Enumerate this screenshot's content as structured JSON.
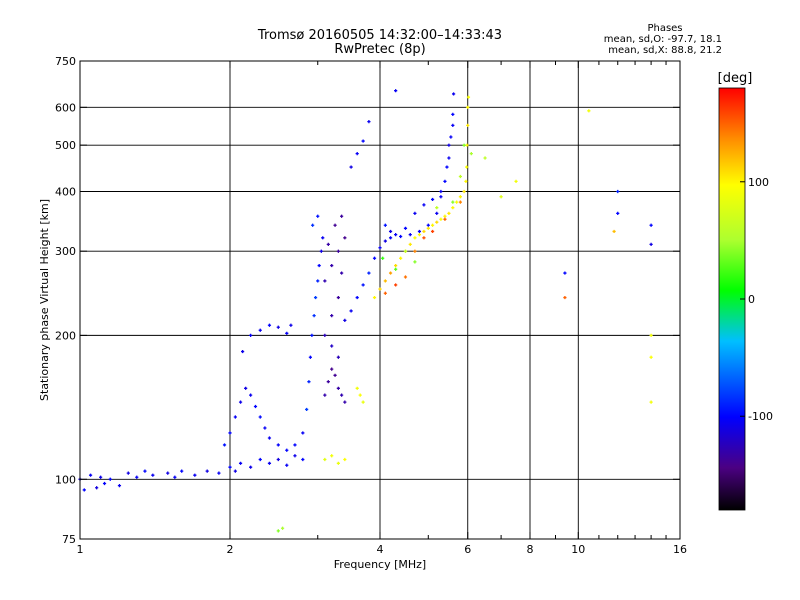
{
  "chart_data": {
    "type": "scatter",
    "title": "Tromsø 20160505 14:32:00–14:33:43",
    "subtitle": "RwPretec (8p)",
    "legend_text": {
      "heading": "Phases",
      "line1": "mean, sd,O: -97.7, 18.1",
      "line2": "mean, sd,X:  88.8, 21.2"
    },
    "xlabel": "Frequency [MHz]",
    "ylabel": "Stationary phase Virtual Height [km]",
    "x_scale": "log",
    "y_scale": "log",
    "xlim": [
      1,
      16
    ],
    "ylim": [
      75,
      750
    ],
    "grid": true,
    "x_ticks": [
      1,
      2,
      4,
      6,
      8,
      10,
      16
    ],
    "x_tick_labels": [
      "1",
      "2",
      "4",
      "6",
      "8",
      "10",
      "16"
    ],
    "x_minor_ticks": [
      3,
      5,
      7,
      9,
      11,
      12,
      13,
      14,
      15
    ],
    "x_grid": [
      2,
      4,
      6,
      8,
      10
    ],
    "y_ticks": [
      75,
      100,
      200,
      300,
      400,
      500,
      600,
      750
    ],
    "y_tick_labels": [
      "75",
      "100",
      "200",
      "300",
      "400",
      "500",
      "600",
      "750"
    ],
    "y_grid": [
      100,
      200,
      300,
      400,
      500,
      600
    ],
    "colorbar": {
      "label": "[deg]",
      "range": [
        -180,
        180
      ],
      "ticks": [
        100,
        0,
        -100
      ],
      "tick_labels": [
        "100",
        "0",
        "-100"
      ]
    },
    "series": [
      {
        "values": [
          [
            1.0,
            100,
            -110
          ],
          [
            1.02,
            95,
            -100
          ],
          [
            1.05,
            102,
            -105
          ],
          [
            1.08,
            96,
            -112
          ],
          [
            1.1,
            101,
            -108
          ],
          [
            1.12,
            98,
            -102
          ],
          [
            1.15,
            100,
            -100
          ],
          [
            1.2,
            97,
            -106
          ],
          [
            1.25,
            103,
            -110
          ],
          [
            1.3,
            101,
            -104
          ],
          [
            1.35,
            104,
            -100
          ],
          [
            1.4,
            102,
            -106
          ],
          [
            1.5,
            103,
            -110
          ],
          [
            1.55,
            101,
            -104
          ],
          [
            1.6,
            104,
            -100
          ],
          [
            1.7,
            102,
            -106
          ],
          [
            1.8,
            104,
            -110
          ],
          [
            1.9,
            103,
            -104
          ],
          [
            2.0,
            106,
            -100
          ],
          [
            2.05,
            104,
            -110
          ],
          [
            2.1,
            108,
            -105
          ],
          [
            2.2,
            106,
            -108
          ],
          [
            2.3,
            110,
            -100
          ],
          [
            2.4,
            108,
            -106
          ],
          [
            2.5,
            110,
            -112
          ],
          [
            2.6,
            107,
            -104
          ],
          [
            2.7,
            112,
            -108
          ],
          [
            2.8,
            110,
            -100
          ],
          [
            1.95,
            118,
            -95
          ],
          [
            2.0,
            125,
            -100
          ],
          [
            2.05,
            135,
            -104
          ],
          [
            2.1,
            145,
            -108
          ],
          [
            2.15,
            155,
            -110
          ],
          [
            2.2,
            150,
            -106
          ],
          [
            2.25,
            142,
            -100
          ],
          [
            2.3,
            135,
            -98
          ],
          [
            2.35,
            128,
            -104
          ],
          [
            2.4,
            122,
            -106
          ],
          [
            2.5,
            118,
            -102
          ],
          [
            2.6,
            115,
            -100
          ],
          [
            2.7,
            118,
            -100
          ],
          [
            2.8,
            125,
            -104
          ],
          [
            2.12,
            185,
            -108
          ],
          [
            2.2,
            200,
            -104
          ],
          [
            2.3,
            205,
            -106
          ],
          [
            2.4,
            210,
            -100
          ],
          [
            2.5,
            208,
            -110
          ],
          [
            2.6,
            202,
            -104
          ],
          [
            2.65,
            210,
            -108
          ],
          [
            2.85,
            140,
            -80
          ],
          [
            2.88,
            160,
            -90
          ],
          [
            2.9,
            180,
            -100
          ],
          [
            2.92,
            200,
            -95
          ],
          [
            2.95,
            220,
            -85
          ],
          [
            2.97,
            240,
            -80
          ],
          [
            3.0,
            260,
            -90
          ],
          [
            3.02,
            280,
            -100
          ],
          [
            3.05,
            300,
            -110
          ],
          [
            3.07,
            320,
            -105
          ],
          [
            2.93,
            340,
            -85
          ],
          [
            3.0,
            355,
            -95
          ],
          [
            3.1,
            150,
            -130
          ],
          [
            3.15,
            160,
            -135
          ],
          [
            3.2,
            170,
            -140
          ],
          [
            3.25,
            165,
            -138
          ],
          [
            3.3,
            155,
            -132
          ],
          [
            3.35,
            150,
            -128
          ],
          [
            3.4,
            145,
            -130
          ],
          [
            3.3,
            180,
            -125
          ],
          [
            3.2,
            190,
            -120
          ],
          [
            3.1,
            200,
            -125
          ],
          [
            3.2,
            220,
            -130
          ],
          [
            3.3,
            240,
            -135
          ],
          [
            3.1,
            260,
            -128
          ],
          [
            3.2,
            280,
            -130
          ],
          [
            3.3,
            300,
            -135
          ],
          [
            3.4,
            320,
            -140
          ],
          [
            3.25,
            340,
            -138
          ],
          [
            3.35,
            355,
            -135
          ],
          [
            3.15,
            310,
            -132
          ],
          [
            3.35,
            270,
            -130
          ],
          [
            3.4,
            215,
            -110
          ],
          [
            3.5,
            225,
            -105
          ],
          [
            3.6,
            240,
            -100
          ],
          [
            3.7,
            255,
            -95
          ],
          [
            3.8,
            270,
            -90
          ],
          [
            3.9,
            290,
            -100
          ],
          [
            4.0,
            305,
            -105
          ],
          [
            4.1,
            315,
            -110
          ],
          [
            4.2,
            320,
            -104
          ],
          [
            4.4,
            322,
            -100
          ],
          [
            4.6,
            325,
            -106
          ],
          [
            4.8,
            330,
            -104
          ],
          [
            5.0,
            340,
            -100
          ],
          [
            5.2,
            360,
            -106
          ],
          [
            5.3,
            390,
            -104
          ],
          [
            5.4,
            420,
            -100
          ],
          [
            5.5,
            470,
            -106
          ],
          [
            5.55,
            520,
            -104
          ],
          [
            5.6,
            580,
            -100
          ],
          [
            5.62,
            640,
            -106
          ],
          [
            4.1,
            340,
            -95
          ],
          [
            4.2,
            330,
            -110
          ],
          [
            4.3,
            325,
            -105
          ],
          [
            4.5,
            335,
            -100
          ],
          [
            4.7,
            360,
            -106
          ],
          [
            4.9,
            375,
            -104
          ],
          [
            5.1,
            385,
            -100
          ],
          [
            5.3,
            400,
            -106
          ],
          [
            5.45,
            450,
            -100
          ],
          [
            5.5,
            500,
            -110
          ],
          [
            5.6,
            550,
            -104
          ],
          [
            3.5,
            450,
            -110
          ],
          [
            3.6,
            480,
            -104
          ],
          [
            3.7,
            510,
            -100
          ],
          [
            3.8,
            560,
            -106
          ],
          [
            4.3,
            650,
            -104
          ],
          [
            12.0,
            400,
            -90
          ],
          [
            12.0,
            360,
            -100
          ],
          [
            14.0,
            340,
            -100
          ],
          [
            14.0,
            310,
            -110
          ],
          [
            9.4,
            270,
            -100
          ],
          [
            3.1,
            110,
            80
          ],
          [
            3.2,
            112,
            90
          ],
          [
            3.3,
            108,
            85
          ],
          [
            3.4,
            110,
            95
          ],
          [
            3.6,
            155,
            90
          ],
          [
            3.7,
            145,
            85
          ],
          [
            3.65,
            150,
            95
          ],
          [
            2.5,
            78,
            40
          ],
          [
            2.55,
            79,
            50
          ]
        ]
      },
      {
        "values": [
          [
            3.9,
            240,
            100
          ],
          [
            4.0,
            250,
            110
          ],
          [
            4.1,
            260,
            120
          ],
          [
            4.2,
            270,
            130
          ],
          [
            4.3,
            280,
            110
          ],
          [
            4.4,
            290,
            100
          ],
          [
            4.5,
            300,
            115
          ],
          [
            4.6,
            310,
            105
          ],
          [
            4.7,
            320,
            95
          ],
          [
            4.8,
            325,
            100
          ],
          [
            4.9,
            330,
            110
          ],
          [
            5.0,
            335,
            105
          ],
          [
            5.1,
            340,
            100
          ],
          [
            5.2,
            345,
            110
          ],
          [
            5.3,
            350,
            95
          ],
          [
            5.4,
            355,
            100
          ],
          [
            5.5,
            360,
            105
          ],
          [
            5.6,
            370,
            100
          ],
          [
            5.7,
            380,
            95
          ],
          [
            5.8,
            390,
            100
          ],
          [
            5.9,
            400,
            105
          ],
          [
            5.95,
            420,
            100
          ],
          [
            5.97,
            450,
            95
          ],
          [
            5.98,
            500,
            100
          ],
          [
            6.0,
            550,
            105
          ],
          [
            6.0,
            600,
            100
          ],
          [
            6.02,
            630,
            95
          ],
          [
            4.1,
            245,
            150
          ],
          [
            4.3,
            255,
            160
          ],
          [
            4.5,
            265,
            145
          ],
          [
            4.7,
            300,
            140
          ],
          [
            4.9,
            320,
            155
          ],
          [
            5.1,
            330,
            160
          ],
          [
            5.4,
            350,
            150
          ],
          [
            5.8,
            380,
            140
          ],
          [
            4.05,
            290,
            20
          ],
          [
            4.3,
            275,
            30
          ],
          [
            4.5,
            300,
            60
          ],
          [
            4.7,
            285,
            40
          ],
          [
            5.2,
            370,
            60
          ],
          [
            5.6,
            380,
            40
          ],
          [
            5.8,
            430,
            60
          ],
          [
            5.9,
            500,
            40
          ],
          [
            6.1,
            480,
            50
          ],
          [
            6.5,
            470,
            60
          ],
          [
            7.0,
            390,
            80
          ],
          [
            7.5,
            420,
            90
          ],
          [
            9.4,
            240,
            150
          ],
          [
            10.5,
            590,
            90
          ],
          [
            11.8,
            330,
            120
          ],
          [
            14.0,
            200,
            90
          ],
          [
            14.0,
            180,
            95
          ],
          [
            14.0,
            145,
            90
          ]
        ]
      }
    ]
  }
}
